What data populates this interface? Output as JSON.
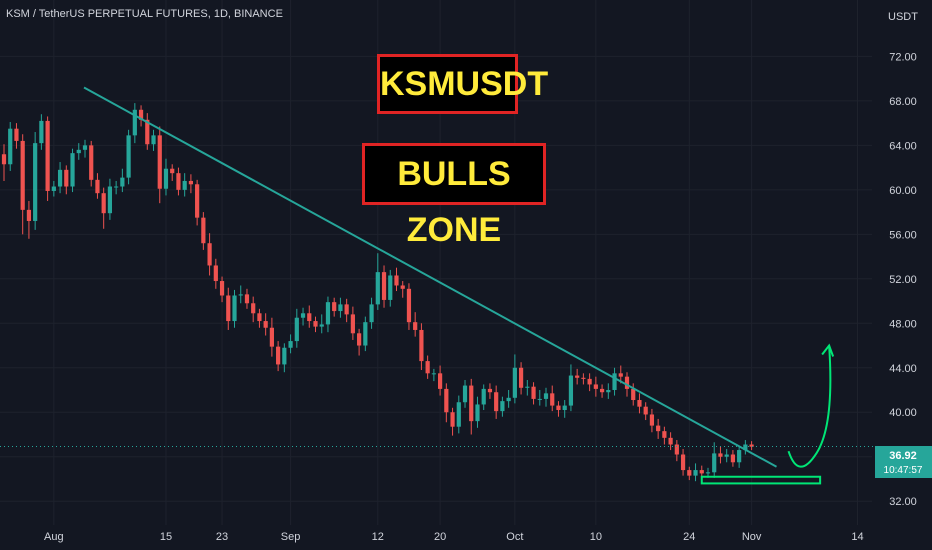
{
  "header": {
    "symbol_line": "KSM / TetherUS PERPETUAL FUTURES, 1D, BINANCE"
  },
  "annotations": {
    "title_box": "KSMUSDT",
    "subtitle_box": "BULLS ZONE"
  },
  "price_axis": {
    "currency": "USDT",
    "last_price": "36.92",
    "countdown": "10:47:57"
  },
  "colors": {
    "background": "#131722",
    "bull": "#26a69a",
    "bear": "#ef5350",
    "trendline": "#26a69a",
    "arrow": "#00e676",
    "support": "#00e676",
    "box_border": "#e02424",
    "box_text": "#ffeb3b",
    "axis_text": "#d1d4dc"
  },
  "chart_data": {
    "type": "candlestick",
    "ylim": [
      30.4,
      76.2
    ],
    "y_ticks": [
      "72.00",
      "68.00",
      "64.00",
      "60.00",
      "56.00",
      "52.00",
      "48.00",
      "44.00",
      "40.00",
      "36.00",
      "32.00"
    ],
    "x_ticks": [
      "Aug",
      "15",
      "23",
      "Sep",
      "12",
      "20",
      "Oct",
      "10",
      "24",
      "Nov",
      "14"
    ],
    "series": [
      {
        "close": [
          62.3,
          65.5,
          64.4,
          58.2,
          57.2,
          64.2,
          66.2,
          59.9,
          60.3,
          61.8,
          60.3,
          63.3,
          63.6,
          64.0,
          60.9,
          59.7,
          57.9,
          60.3,
          60.3,
          61.1,
          64.9,
          67.2,
          66.3,
          64.1,
          64.9,
          60.1,
          61.9,
          61.5,
          60.0,
          60.8,
          60.5,
          57.5,
          55.2,
          53.2,
          51.8,
          50.5,
          48.2,
          50.5,
          50.6,
          49.8,
          48.9,
          48.2,
          47.6,
          45.9,
          44.3,
          45.8,
          46.4,
          48.5,
          48.9,
          48.2,
          47.7,
          47.9,
          49.9,
          49.1,
          49.7,
          48.8,
          47.1,
          46.0,
          48.1,
          49.7,
          52.6,
          50.1,
          52.3,
          51.4,
          51.1,
          48.1,
          47.4,
          44.6,
          43.5,
          43.5,
          42.1,
          40.0,
          38.7,
          40.9,
          42.4,
          39.2,
          40.7,
          42.1,
          41.8,
          40.1,
          41.0,
          41.3,
          44.0,
          42.2,
          42.3,
          41.2,
          41.2,
          41.7,
          40.6,
          40.2,
          40.6,
          43.3,
          43.1,
          43.0,
          42.5,
          42.1,
          41.8,
          42.0,
          43.5,
          43.2,
          42.1,
          41.1,
          40.5,
          39.8,
          38.8,
          38.3,
          37.7,
          37.1,
          36.2,
          34.8,
          34.3,
          34.8,
          34.5,
          34.6,
          36.3,
          36.0,
          36.2,
          35.5,
          36.6,
          37.1,
          36.9
        ],
        "open_first": 63.2,
        "high_extra": [
          0.9,
          0.6,
          0.5,
          0.6,
          0.8,
          1.0,
          0.6,
          0.4,
          0.5,
          0.7,
          0.4,
          0.4,
          0.6,
          0.5,
          0.4,
          0.6,
          0.5,
          0.7,
          0.5,
          0.8,
          0.5,
          0.6,
          0.4,
          0.6,
          0.5,
          0.8,
          0.9,
          0.4,
          0.5,
          0.7,
          0.6,
          0.4,
          0.5,
          0.9,
          0.6,
          0.4,
          0.7,
          0.5,
          0.8,
          0.5,
          0.6,
          0.4,
          0.7,
          0.9,
          0.5,
          0.4,
          0.6,
          0.8,
          0.5,
          0.7,
          0.4,
          0.9,
          0.5,
          0.4,
          0.6,
          0.5,
          0.7,
          0.4,
          0.5,
          0.6,
          1.7,
          0.6,
          0.5,
          0.7,
          0.4,
          0.5,
          0.9,
          0.6,
          0.5,
          0.4,
          0.7,
          0.5,
          0.4,
          0.6,
          0.5,
          0.6,
          0.7,
          0.4,
          0.5,
          0.6,
          0.4,
          0.7,
          1.2,
          0.5,
          0.6,
          0.4,
          0.8,
          0.5,
          0.7,
          0.4,
          0.5,
          1.0,
          0.6,
          0.4,
          0.5,
          0.7,
          0.4,
          0.6,
          0.5,
          0.7,
          0.4,
          0.5,
          0.6,
          0.4,
          0.5,
          0.6,
          0.4,
          0.5,
          0.4,
          0.5,
          0.3,
          0.6,
          0.4,
          0.4,
          1.0,
          0.6,
          0.5,
          0.4,
          0.3,
          0.4,
          0.3
        ],
        "low_extra": [
          1.5,
          0.6,
          0.7,
          2.2,
          1.6,
          0.8,
          0.6,
          0.9,
          0.5,
          0.6,
          0.7,
          0.5,
          0.6,
          0.7,
          0.6,
          0.5,
          1.4,
          0.6,
          0.7,
          0.5,
          0.6,
          0.7,
          0.6,
          0.5,
          0.6,
          1.3,
          0.6,
          0.7,
          0.5,
          0.6,
          0.8,
          0.7,
          0.6,
          0.9,
          0.7,
          0.6,
          0.8,
          0.6,
          0.7,
          0.5,
          0.8,
          0.6,
          0.7,
          0.9,
          0.6,
          0.7,
          0.5,
          0.6,
          0.7,
          0.6,
          0.5,
          0.6,
          0.7,
          0.5,
          0.6,
          0.7,
          0.6,
          0.9,
          0.5,
          0.6,
          0.5,
          0.7,
          0.6,
          0.5,
          0.8,
          0.7,
          0.6,
          0.8,
          0.5,
          0.7,
          0.6,
          0.9,
          0.8,
          0.6,
          0.5,
          1.2,
          0.6,
          0.5,
          0.6,
          0.7,
          0.5,
          0.6,
          0.5,
          0.6,
          0.7,
          0.5,
          0.6,
          0.7,
          0.5,
          0.6,
          0.7,
          0.5,
          0.6,
          0.5,
          0.6,
          0.7,
          0.5,
          0.6,
          0.5,
          0.6,
          0.7,
          0.5,
          0.6,
          0.5,
          0.6,
          0.7,
          0.6,
          0.5,
          0.6,
          0.5,
          0.4,
          0.5,
          0.3,
          0.4,
          0.5,
          0.6,
          0.5,
          0.4,
          0.5,
          0.4,
          0.3
        ]
      }
    ],
    "trendline": {
      "from": [
        0,
        69.2
      ],
      "to": [
        124,
        35.1
      ]
    },
    "support_zone": {
      "from_index": 112,
      "to_index": 131,
      "low": 33.6,
      "high": 34.2
    },
    "projection_arrow": {
      "from": [
        124,
        36.5
      ],
      "to": [
        131,
        46.0
      ]
    }
  }
}
